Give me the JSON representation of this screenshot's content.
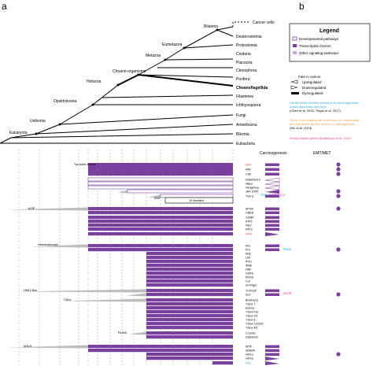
{
  "panel_labels": {
    "a": "a",
    "b": "b"
  },
  "cancer_cells": "Cancer cells",
  "taxa": [
    "Deuterostomia",
    "Protostomia",
    "Cnidaria",
    "Placozoa",
    "Ctenophora",
    "Porifera",
    "Choanoflagellida",
    "Filasterea",
    "Ichthyosporea",
    "Fungi",
    "Amoebozoa",
    "Bikonta",
    "Eubacteria"
  ],
  "clades": [
    "Bilateria",
    "Eumetazoa",
    "Metazoa",
    "Choano-organisms",
    "Holozoa",
    "Opisthokonta",
    "Unikonta",
    "Eukaryota"
  ],
  "legend": {
    "title": "Legend",
    "items": [
      "Developmental pathways",
      "Transcription factors",
      "Other signaling pathways"
    ],
    "fate_title": "Fate in cancer",
    "fate_items": [
      "Upregulated",
      "Downregulated",
      "Dysregulated"
    ],
    "note1": "Genes under positive selection in carcinogenesis",
    "note1b": "Under darwinian selection",
    "note1c": "(Chen et al. 2015; Trigos et al. 2017)",
    "note2": "Genes coordinating the expression of multicellular",
    "note2b": "and unicellular genes, drivers of tumorigenesis",
    "note2c": "(Wu et al. 2015)",
    "note3": "Ploidy-related genes (Anatskaya et al. 2020)"
  },
  "colors": {
    "purple": "#7b3fa0",
    "light_purple": "#c9a8dc",
    "blue": "#29a8e0",
    "orange": "#f39c3b",
    "pink": "#e0409a",
    "gray": "#bdbdbd",
    "red": "#e03a3a"
  },
  "col_headers": {
    "carcinogenesis": "Carcinogenesis",
    "emt": "EMT/MET"
  },
  "group_labels": {
    "tyrosine": "Tyrosine kinase",
    "wnt": "Wnt",
    "eleven": "11 families",
    "bzip": "bZIP",
    "homeodomain": "Homeodomain",
    "hmg": "HMG Box",
    "tbox": "T-Box",
    "runx": "RUNX",
    "bhlh": "bHLH"
  },
  "annotations": {
    "tgfb": "TGF-β1",
    "bmp": "BMP2,4",
    "pax4": "Pax4",
    "sox9": "Sox9"
  },
  "gene_rows": [
    {
      "label": "SRC",
      "color": "red"
    },
    {
      "label": "FAK",
      "color": "black"
    },
    {
      "label": "CSK",
      "color": "black"
    },
    {
      "label": "Delta/Notch",
      "color": "black"
    },
    {
      "label": "Hippo",
      "color": "black"
    },
    {
      "label": "Hedgehog",
      "color": "black"
    },
    {
      "label": "JAK-STAT",
      "color": "black"
    },
    {
      "label": "TGF-β",
      "color": "black"
    },
    {
      "label": "AP2/6",
      "color": "black"
    },
    {
      "label": "CREB",
      "color": "black"
    },
    {
      "label": "C/EBP",
      "color": "black"
    },
    {
      "label": "ATF6",
      "color": "black"
    },
    {
      "label": "Nfe2",
      "color": "black"
    },
    {
      "label": "ATF3",
      "color": "black"
    },
    {
      "label": "ATF4",
      "color": "red"
    },
    {
      "label": "Pbx",
      "color": "black"
    },
    {
      "label": "Prd",
      "color": "black"
    },
    {
      "label": "Antp",
      "color": "black"
    },
    {
      "label": "LIM",
      "color": "black"
    },
    {
      "label": "POU",
      "color": "black"
    },
    {
      "label": "SINE",
      "color": "black"
    },
    {
      "label": "HNF",
      "color": "black"
    },
    {
      "label": "CERS",
      "color": "black"
    },
    {
      "label": "PROS",
      "color": "black"
    },
    {
      "label": "Cut",
      "color": "black"
    },
    {
      "label": "Zn-finger",
      "color": "black"
    },
    {
      "label": "TCF/LEF",
      "color": "black"
    },
    {
      "label": "Sox",
      "color": "black"
    },
    {
      "label": "Brachyury",
      "color": "black"
    },
    {
      "label": "T-Box 7",
      "color": "black"
    },
    {
      "label": "Eomes",
      "color": "black"
    },
    {
      "label": "T-Box Pac",
      "color": "black"
    },
    {
      "label": "T-Box 2/3",
      "color": "black"
    },
    {
      "label": "T-Box 6",
      "color": "black"
    },
    {
      "label": "T-Box 1/15/20",
      "color": "black"
    },
    {
      "label": "T-Box 4/5",
      "color": "black"
    },
    {
      "label": "Crumbs",
      "color": "black"
    },
    {
      "label": "Dachlimm",
      "color": "black"
    },
    {
      "label": "MITF",
      "color": "black"
    },
    {
      "label": "SREBP",
      "color": "black"
    },
    {
      "label": "HIF1a",
      "color": "black"
    },
    {
      "label": "HIF2a",
      "color": "black"
    },
    {
      "label": "VHL",
      "color": "blue"
    }
  ]
}
